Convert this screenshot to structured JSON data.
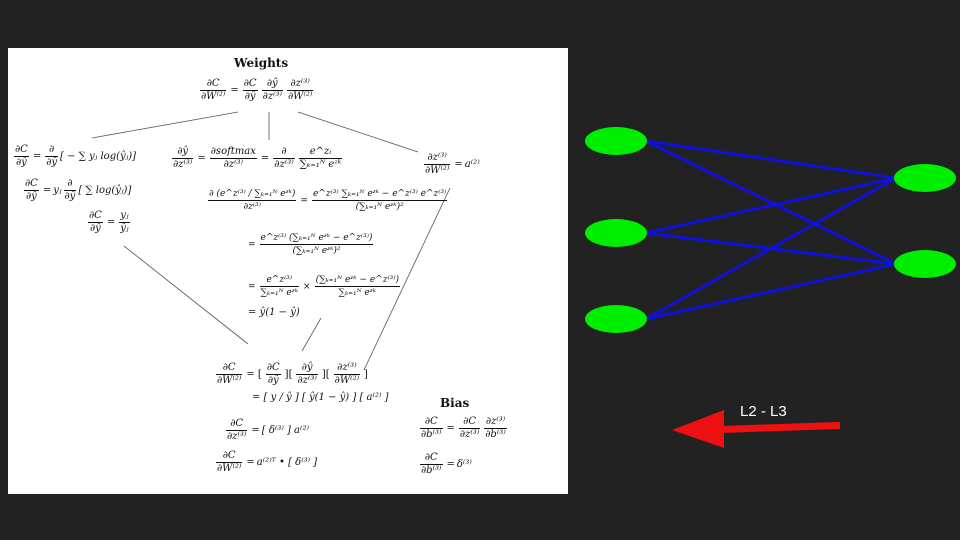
{
  "panel": {
    "weights_heading": "Weights",
    "bias_heading": "Bias",
    "top_eq": {
      "lhs_num": "∂C",
      "lhs_den": "∂W⁽²⁾",
      "f1_num": "∂C",
      "f1_den": "∂ŷ",
      "f2_num": "∂ŷ",
      "f2_den": "∂z⁽³⁾",
      "f3_num": "∂z⁽³⁾",
      "f3_den": "∂W⁽²⁾"
    },
    "left": {
      "l1_lhs_num": "∂C",
      "l1_lhs_den": "∂ŷ",
      "l1_op_num": "∂",
      "l1_op_den": "∂ŷ",
      "l1_rhs": "[ − ∑ yⱼ log(ŷⱼ)]",
      "l2_lhs_num": "∂C",
      "l2_lhs_den": "∂ŷ",
      "l2_pre": "yⱼ",
      "l2_op_num": "∂",
      "l2_op_den": "∂ŷ",
      "l2_rhs": "[ ∑ log(ŷⱼ)]",
      "l3_lhs_num": "∂C",
      "l3_lhs_den": "∂ŷ",
      "l3_rhs_num": "yⱼ",
      "l3_rhs_den": "ŷⱼ"
    },
    "middle": {
      "m1_lhs_num": "∂ŷ",
      "m1_lhs_den": "∂z⁽³⁾",
      "m1_f2_num": "∂softmax",
      "m1_f2_den": "∂z⁽³⁾",
      "m1_f3_num": "∂",
      "m1_f3_den": "∂z⁽³⁾",
      "m1_f4_num": "e^zᵢ",
      "m1_f4_den": "∑ₖ₌₁ᴺ eᶻᵏ",
      "m2_lhs_num": "∂ (e^z⁽³⁾ / ∑ₖ₌₁ᴺ eᶻᵏ)",
      "m2_lhs_den": "∂z⁽³⁾",
      "m2_rhs_num": "e^z⁽³⁾ ∑ₖ₌₁ᴺ eᶻᵏ − e^z⁽³⁾ e^z⁽³⁾",
      "m2_rhs_den": "(∑ₖ₌₁ᴺ eᶻᵏ)²",
      "m3_num": "e^z⁽³⁾ (∑ₖ₌₁ᴺ eᶻᵏ − e^z⁽³⁾)",
      "m3_den": "(∑ₖ₌₁ᴺ eᶻᵏ)²",
      "m4_a_num": "e^z⁽³⁾",
      "m4_a_den": "∑ₖ₌₁ᴺ eᶻᵏ",
      "m4_times": "×",
      "m4_b_num": "(∑ₖ₌₁ᴺ eᶻᵏ − e^z⁽³⁾)",
      "m4_b_den": "∑ₖ₌₁ᴺ eᶻᵏ",
      "m5": "= ŷ(1 − ŷ)"
    },
    "right": {
      "r1_lhs_num": "∂z⁽³⁾",
      "r1_lhs_den": "∂W⁽²⁾",
      "r1_rhs": "a⁽²⁾"
    },
    "bottom": {
      "b1_lhs_num": "∂C",
      "b1_lhs_den": "∂W⁽²⁾",
      "b1_f1_num": "∂C",
      "b1_f1_den": "∂ŷ",
      "b1_f2_num": "∂ŷ",
      "b1_f2_den": "∂z⁽³⁾",
      "b1_f3_num": "∂z⁽³⁾",
      "b1_f3_den": "∂W⁽²⁾",
      "b2": "= [ y / ŷ ] [ ŷ(1 − ŷ) ] [ a⁽²⁾ ]",
      "b3_lhs_num": "∂C",
      "b3_lhs_den": "∂z⁽³⁾",
      "b3_rhs": "[ δ⁽³⁾ ] a⁽²⁾",
      "b4_lhs_num": "∂C",
      "b4_lhs_den": "∂W⁽²⁾",
      "b4_rhs": "a⁽²⁾ᵀ • [ δ⁽³⁾ ]"
    },
    "bias": {
      "c1_lhs_num": "∂C",
      "c1_lhs_den": "∂b⁽³⁾",
      "c1_f1_num": "∂C",
      "c1_f1_den": "∂z⁽³⁾",
      "c1_f2_num": "∂z⁽³⁾",
      "c1_f2_den": "∂b⁽³⁾",
      "c2_lhs_num": "∂C",
      "c2_lhs_den": "∂b⁽³⁾",
      "c2_rhs": "δ⁽³⁾"
    }
  },
  "network": {
    "node_color": "#00ee00",
    "edge_color": "#1010dd",
    "layer_left_nodes": 3,
    "layer_right_nodes": 2
  },
  "arrow": {
    "color": "#ee1111",
    "label": "L2 - L3"
  }
}
